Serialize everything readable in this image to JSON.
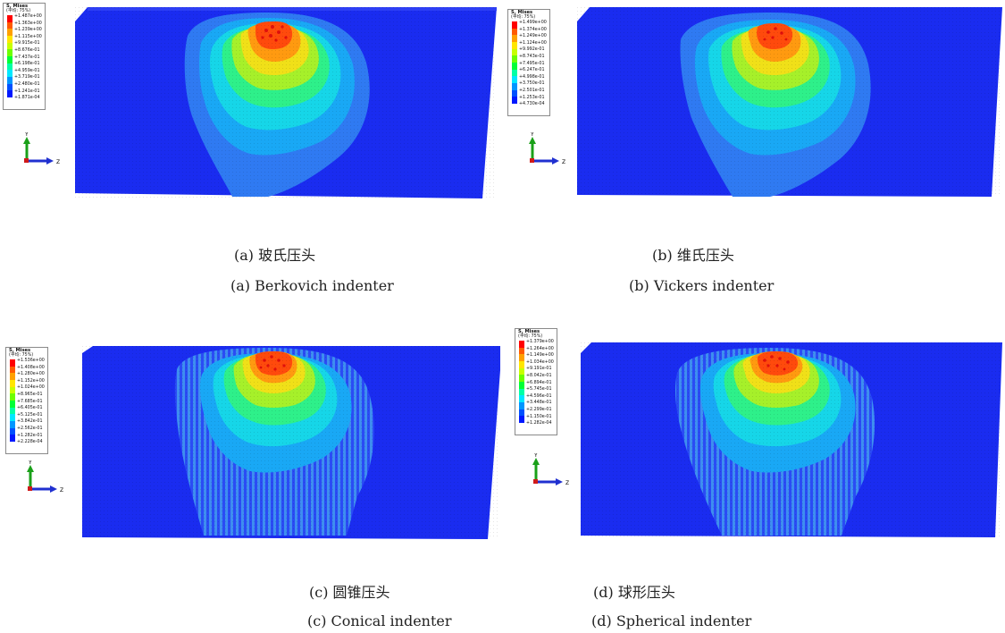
{
  "legend_colors": [
    "#ff0000",
    "#ff5a00",
    "#ffa000",
    "#ffe600",
    "#c8ff00",
    "#6dff00",
    "#00ff36",
    "#00ffa5",
    "#00e8ff",
    "#0096ff",
    "#0050ff",
    "#0018ff"
  ],
  "panels": [
    {
      "legend_title": "S, Mises",
      "legend_subtitle": "(平均: 75%)",
      "legend_values": [
        "+1.487e+00",
        "+1.363e+00",
        "+1.239e+00",
        "+1.115e+00",
        "+9.915e-01",
        "+8.676e-01",
        "+7.437e-01",
        "+6.198e-01",
        "+4.959e-01",
        "+3.719e-01",
        "+2.480e-01",
        "+1.241e-01",
        "+1.871e-04"
      ],
      "axis_y": "Y",
      "axis_z": "Z",
      "caption_cn": "(a) 玻氏压头",
      "caption_en": "(a) Berkovich indenter"
    },
    {
      "legend_title": "S, Mises",
      "legend_subtitle": "(平均: 75%)",
      "legend_values": [
        "+1.499e+00",
        "+1.374e+00",
        "+1.249e+00",
        "+1.124e+00",
        "+9.992e-01",
        "+8.743e-01",
        "+7.495e-01",
        "+6.247e-01",
        "+4.998e-01",
        "+3.750e-01",
        "+2.501e-01",
        "+1.253e-01",
        "+4.730e-04"
      ],
      "axis_y": "Y",
      "axis_z": "Z",
      "caption_cn": "(b) 维氏压头",
      "caption_en": "(b) Vickers indenter"
    },
    {
      "legend_title": "S, Mises",
      "legend_subtitle": "(平均: 75%)",
      "legend_values": [
        "+1.536e+00",
        "+1.408e+00",
        "+1.280e+00",
        "+1.152e+00",
        "+1.024e+00",
        "+8.965e-01",
        "+7.685e-01",
        "+6.405e-01",
        "+5.125e-01",
        "+3.842e-01",
        "+2.562e-01",
        "+1.282e-01",
        "+2.228e-04"
      ],
      "axis_y": "Y",
      "axis_z": "Z",
      "caption_cn": "(c) 圆锥压头",
      "caption_en": "(c) Conical indenter"
    },
    {
      "legend_title": "S, Mises",
      "legend_subtitle": "(平均: 75%)",
      "legend_values": [
        "+1.379e+00",
        "+1.264e+00",
        "+1.149e+00",
        "+1.034e+00",
        "+9.191e-01",
        "+8.042e-01",
        "+6.894e-01",
        "+5.745e-01",
        "+4.596e-01",
        "+3.448e-01",
        "+2.299e-01",
        "+1.150e-01",
        "+1.282e-04"
      ],
      "axis_y": "Y",
      "axis_z": "Z",
      "caption_cn": "(d) 球形压头",
      "caption_en": "(d) Spherical indenter"
    }
  ]
}
